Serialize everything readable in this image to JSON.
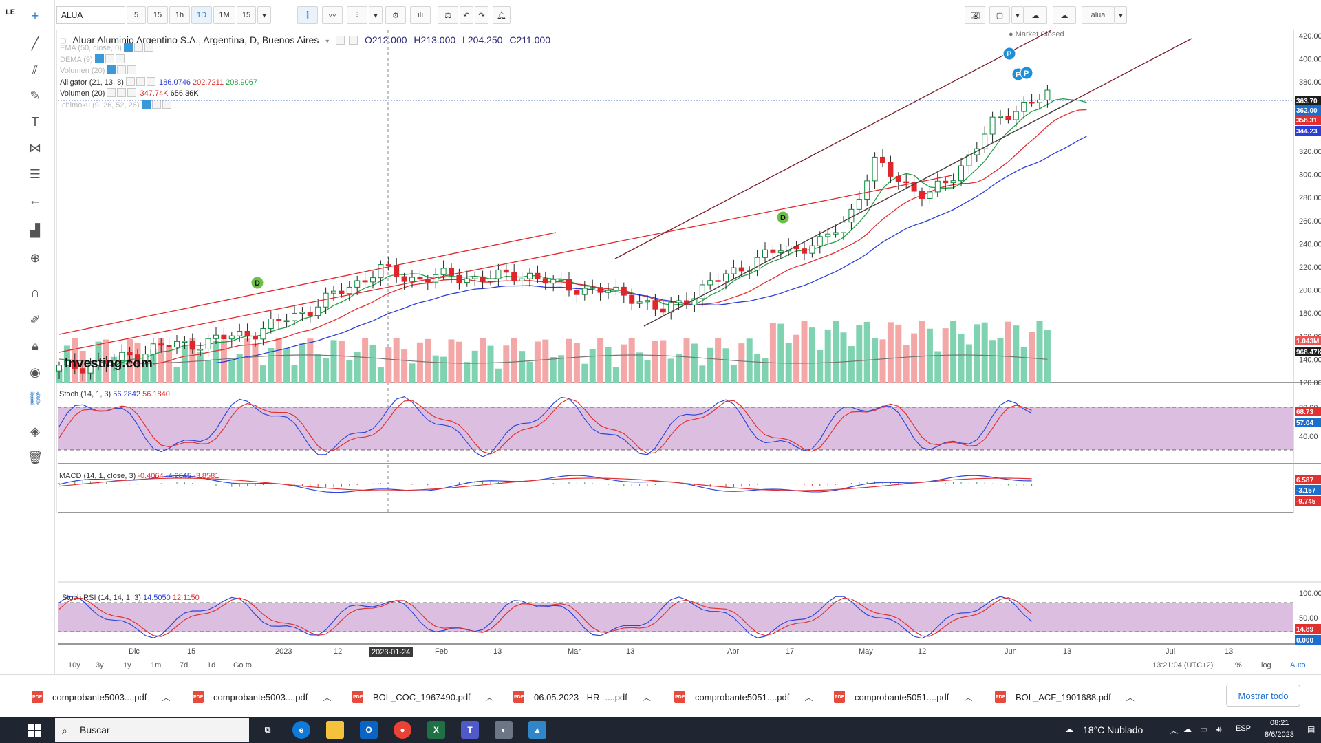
{
  "app": {
    "symbol": "ALUA",
    "intervals": [
      "5",
      "15",
      "1h",
      "1D",
      "1M",
      "15"
    ],
    "active_interval": "1D",
    "user_badge": "alua"
  },
  "chart_header": {
    "title": "Aluar Aluminio Argentino S.A., Argentina, D, Buenos Aires",
    "open": "O212.000",
    "high": "H213.000",
    "low": "L204.250",
    "close": "C211.000",
    "market_status": "Market Closed"
  },
  "indicators": [
    {
      "label": "EMA (50, close, 0)",
      "values": [],
      "dim": true
    },
    {
      "label": "DEMA (9)",
      "values": [],
      "dim": true
    },
    {
      "label": "Volumen (20)",
      "values": [],
      "dim": true
    },
    {
      "label": "Alligator (21, 13, 8)",
      "values": [
        "186.0746",
        "202.7211",
        "208.9067"
      ],
      "dim": false
    },
    {
      "label": "Volumen (20)",
      "values": [
        "347.74K",
        "656.36K"
      ],
      "dim": false
    },
    {
      "label": "Ichimoku (9, 26, 52, 26)",
      "values": [],
      "dim": true
    }
  ],
  "price_axis": [
    "420.00",
    "400.00",
    "380.00",
    "360.00",
    "340.00",
    "320.00",
    "300.00",
    "280.00",
    "260.00",
    "240.00",
    "220.00",
    "200.00",
    "180.00",
    "160.00",
    "140.00",
    "120.00"
  ],
  "price_badges": [
    {
      "text": "363.70",
      "color": "#ffffff",
      "bg": "#1d1d1d"
    },
    {
      "text": "362.00",
      "color": "#ffffff",
      "bg": "#1a6fcf"
    },
    {
      "text": "358.31",
      "color": "#ffffff",
      "bg": "#e03131"
    },
    {
      "text": "344.23",
      "color": "#ffffff",
      "bg": "#2b3fd6"
    },
    {
      "text": "1.043M",
      "color": "#ffffff",
      "bg": "#f05252"
    },
    {
      "text": "968.47K",
      "color": "#ffffff",
      "bg": "#1d1d1d"
    }
  ],
  "watermark": "Investing.com",
  "stoch": {
    "label": "Stoch (14, 1, 3)",
    "k": "56.2842",
    "d": "56.1840",
    "axis": [
      "80.00",
      "40.00"
    ],
    "badges": [
      {
        "text": "68.73",
        "bg": "#e03131"
      },
      {
        "text": "57.04",
        "bg": "#1a6fcf"
      }
    ]
  },
  "macd": {
    "label": "MACD (14, 1, close, 3)",
    "values": [
      "-0.4064",
      "-4.2645",
      "-3.8581"
    ],
    "badges": [
      {
        "text": "6.587",
        "bg": "#e03131"
      },
      {
        "text": "-3.157",
        "bg": "#1a6fcf"
      },
      {
        "text": "-9.745",
        "bg": "#e03131"
      }
    ]
  },
  "stoch_rsi": {
    "label": "Stoch RSI (14, 14, 1, 3)",
    "k": "14.5050",
    "d": "12.1150",
    "axis": [
      "100.00",
      "50.00"
    ],
    "badges": [
      {
        "text": "14.89",
        "bg": "#e03131"
      },
      {
        "text": "0.000",
        "bg": "#1a6fcf"
      }
    ]
  },
  "time_axis": [
    "Dic",
    "15",
    "2023",
    "12",
    "Feb",
    "13",
    "Mar",
    "13",
    "Abr",
    "17",
    "May",
    "12",
    "Jun",
    "13",
    "Jul",
    "13"
  ],
  "crosshair_date": "2023-01-24",
  "range_buttons": [
    "10y",
    "3y",
    "1y",
    "1m",
    "7d",
    "1d",
    "Go to..."
  ],
  "range_right": {
    "clock": "13:21:04 (UTC+2)",
    "pct": "%",
    "log": "log",
    "auto": "Auto"
  },
  "signals": [
    "D",
    "D",
    "P",
    "P",
    "P"
  ],
  "downloads": [
    "comprobante5003....pdf",
    "comprobante5003....pdf",
    "BOL_COC_1967490.pdf",
    "06.05.2023 - HR -....pdf",
    "comprobante5051....pdf",
    "comprobante5051....pdf",
    "BOL_ACF_1901688.pdf"
  ],
  "show_all": "Mostrar todo",
  "taskbar": {
    "search_placeholder": "Buscar",
    "weather": "18°C  Nublado",
    "lang": "ESP",
    "time": "08:21",
    "date": "8/6/2023"
  },
  "colors": {
    "up": "#26a69a",
    "down": "#e0262b",
    "volume_up": "#7fd3b1",
    "volume_down": "#f4a7a7",
    "band": "#dcbfe0"
  }
}
